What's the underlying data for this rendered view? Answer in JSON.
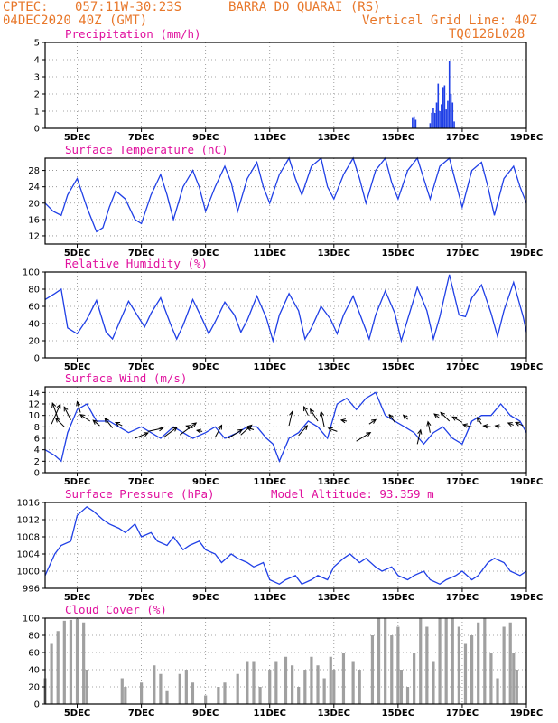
{
  "header": {
    "source": "CPTEC:",
    "coords": "057:11W-30:23S",
    "station": "BARRA DO QUARAI (RS)",
    "run": "04DEC2020 40Z (GMT)",
    "grid_note": "Vertical Grid Line: 40Z",
    "model": "TQ0126L028"
  },
  "colors": {
    "header": "#e8772a",
    "title": "#e0119e",
    "series": "#1f3fe6",
    "cloud": "#a0a0a0"
  },
  "x_tick_labels": [
    "5DEC",
    "7DEC",
    "9DEC",
    "11DEC",
    "13DEC",
    "15DEC",
    "17DEC",
    "19DEC"
  ],
  "chart_data": [
    {
      "id": "precip",
      "type": "bar",
      "title": "Precipitation (mm/h)",
      "ylim": [
        0,
        5
      ],
      "yticks": [
        0,
        1,
        2,
        3,
        4,
        5
      ],
      "x_unit": "day_of_dec",
      "values": [
        {
          "x": 15.45,
          "y": 0.6
        },
        {
          "x": 15.5,
          "y": 0.7
        },
        {
          "x": 15.55,
          "y": 0.5
        },
        {
          "x": 16.0,
          "y": 0.3
        },
        {
          "x": 16.05,
          "y": 0.9
        },
        {
          "x": 16.1,
          "y": 1.2
        },
        {
          "x": 16.15,
          "y": 0.9
        },
        {
          "x": 16.2,
          "y": 1.5
        },
        {
          "x": 16.25,
          "y": 2.6
        },
        {
          "x": 16.3,
          "y": 1.0
        },
        {
          "x": 16.35,
          "y": 1.4
        },
        {
          "x": 16.4,
          "y": 2.4
        },
        {
          "x": 16.45,
          "y": 2.5
        },
        {
          "x": 16.5,
          "y": 1.1
        },
        {
          "x": 16.55,
          "y": 1.6
        },
        {
          "x": 16.6,
          "y": 3.9
        },
        {
          "x": 16.65,
          "y": 2.0
        },
        {
          "x": 16.7,
          "y": 1.5
        },
        {
          "x": 16.75,
          "y": 0.4
        }
      ]
    },
    {
      "id": "temp",
      "type": "line",
      "title": "Surface Temperature (nC)",
      "ylim": [
        10,
        31
      ],
      "yticks": [
        12,
        16,
        20,
        24,
        28
      ],
      "x": [
        4.0,
        4.25,
        4.5,
        4.7,
        5.0,
        5.3,
        5.6,
        5.8,
        6.0,
        6.2,
        6.5,
        6.8,
        7.0,
        7.3,
        7.6,
        7.8,
        8.0,
        8.3,
        8.6,
        8.8,
        9.0,
        9.3,
        9.6,
        9.8,
        10.0,
        10.3,
        10.6,
        10.8,
        11.0,
        11.3,
        11.6,
        11.8,
        12.0,
        12.3,
        12.6,
        12.8,
        13.0,
        13.3,
        13.6,
        13.8,
        14.0,
        14.3,
        14.6,
        14.8,
        15.0,
        15.3,
        15.6,
        15.8,
        16.0,
        16.3,
        16.6,
        16.8,
        17.0,
        17.3,
        17.6,
        17.8,
        18.0,
        18.3,
        18.6,
        18.8,
        19.0
      ],
      "y": [
        20,
        18,
        17,
        22,
        26,
        19,
        13,
        14,
        19,
        23,
        21,
        16,
        15,
        22,
        27,
        22,
        16,
        24,
        28,
        24,
        18,
        24,
        29,
        25,
        18,
        26,
        30,
        24,
        20,
        27,
        31,
        26,
        22,
        29,
        31,
        24,
        21,
        27,
        31,
        26,
        20,
        28,
        31,
        25,
        21,
        28,
        31,
        26,
        21,
        29,
        31,
        25,
        19,
        28,
        30,
        24,
        17,
        26,
        29,
        24,
        20
      ]
    },
    {
      "id": "rh",
      "type": "line",
      "title": "Relative Humidity (%)",
      "ylim": [
        0,
        100
      ],
      "yticks": [
        0,
        20,
        40,
        60,
        80,
        100
      ],
      "x": [
        4.0,
        4.3,
        4.5,
        4.7,
        5.0,
        5.3,
        5.6,
        5.9,
        6.1,
        6.3,
        6.6,
        6.9,
        7.1,
        7.3,
        7.6,
        7.9,
        8.1,
        8.3,
        8.6,
        8.9,
        9.1,
        9.3,
        9.6,
        9.9,
        10.1,
        10.3,
        10.6,
        10.9,
        11.1,
        11.3,
        11.6,
        11.9,
        12.1,
        12.3,
        12.6,
        12.9,
        13.1,
        13.3,
        13.6,
        13.9,
        14.1,
        14.3,
        14.6,
        14.9,
        15.1,
        15.3,
        15.6,
        15.9,
        16.1,
        16.3,
        16.6,
        16.9,
        17.1,
        17.3,
        17.6,
        17.9,
        18.1,
        18.3,
        18.6,
        18.9,
        19.0
      ],
      "y": [
        68,
        75,
        80,
        35,
        28,
        45,
        67,
        30,
        22,
        40,
        66,
        48,
        36,
        52,
        70,
        40,
        22,
        38,
        68,
        45,
        28,
        42,
        65,
        50,
        30,
        44,
        72,
        46,
        20,
        50,
        75,
        55,
        22,
        35,
        60,
        45,
        28,
        50,
        72,
        42,
        22,
        50,
        78,
        52,
        20,
        45,
        82,
        55,
        22,
        48,
        97,
        50,
        48,
        70,
        85,
        52,
        25,
        55,
        88,
        48,
        30
      ]
    },
    {
      "id": "wind",
      "type": "line",
      "title": "Surface Wind (m/s)",
      "ylim": [
        0,
        15
      ],
      "yticks": [
        0,
        2,
        4,
        6,
        8,
        10,
        12,
        14
      ],
      "x": [
        4.0,
        4.3,
        4.5,
        4.7,
        5.0,
        5.3,
        5.6,
        6.0,
        6.3,
        6.6,
        7.0,
        7.3,
        7.6,
        8.0,
        8.3,
        8.6,
        9.0,
        9.3,
        9.6,
        10.0,
        10.3,
        10.6,
        10.9,
        11.1,
        11.3,
        11.6,
        11.9,
        12.2,
        12.5,
        12.8,
        13.1,
        13.4,
        13.7,
        14.0,
        14.3,
        14.6,
        14.9,
        15.2,
        15.5,
        15.8,
        16.1,
        16.4,
        16.7,
        17.0,
        17.3,
        17.6,
        17.9,
        18.2,
        18.5,
        18.8,
        19.0
      ],
      "y": [
        4,
        3,
        2,
        7,
        11,
        12,
        9,
        9,
        8,
        7,
        8,
        7,
        6,
        8,
        7,
        6,
        7,
        8,
        6,
        7,
        8,
        8,
        6,
        5,
        2,
        6,
        7,
        9,
        8,
        6,
        12,
        13,
        11,
        13,
        14,
        10,
        9,
        8,
        7,
        5,
        7,
        8,
        6,
        5,
        9,
        10,
        10,
        12,
        10,
        9,
        7
      ],
      "arrows": [
        {
          "x": 4.2,
          "y": 8.5,
          "u": 0.8,
          "v": 1.8
        },
        {
          "x": 4.4,
          "y": 9.5,
          "u": -0.5,
          "v": 1.4
        },
        {
          "x": 4.6,
          "y": 8.0,
          "u": -0.8,
          "v": 0.8
        },
        {
          "x": 4.8,
          "y": 9.2,
          "u": -0.6,
          "v": 1.2
        },
        {
          "x": 5.1,
          "y": 10.5,
          "u": -0.3,
          "v": 1.0
        },
        {
          "x": 5.4,
          "y": 9.0,
          "u": -0.9,
          "v": 0.6
        },
        {
          "x": 5.7,
          "y": 8.2,
          "u": -0.6,
          "v": 0.5
        },
        {
          "x": 6.1,
          "y": 7.8,
          "u": -0.7,
          "v": 0.9
        },
        {
          "x": 6.4,
          "y": 8.2,
          "u": -0.6,
          "v": 0.3
        },
        {
          "x": 6.8,
          "y": 6.0,
          "u": 1.2,
          "v": 0.5
        },
        {
          "x": 7.2,
          "y": 7.2,
          "u": 1.4,
          "v": 0.3
        },
        {
          "x": 7.7,
          "y": 6.2,
          "u": 1.2,
          "v": 0.9
        },
        {
          "x": 8.2,
          "y": 6.6,
          "u": 1.5,
          "v": 1.1
        },
        {
          "x": 8.6,
          "y": 7.8,
          "u": -0.6,
          "v": 0.2
        },
        {
          "x": 8.9,
          "y": 7.2,
          "u": -0.5,
          "v": 0.1
        },
        {
          "x": 9.3,
          "y": 6.2,
          "u": 0.6,
          "v": 1.1
        },
        {
          "x": 9.7,
          "y": 6.0,
          "u": 1.3,
          "v": 0.8
        },
        {
          "x": 10.1,
          "y": 6.6,
          "u": 1.0,
          "v": 0.9
        },
        {
          "x": 10.5,
          "y": 7.5,
          "u": -0.6,
          "v": 0.2
        },
        {
          "x": 11.6,
          "y": 8.2,
          "u": 0.3,
          "v": 1.3
        },
        {
          "x": 11.9,
          "y": 6.5,
          "u": 0.8,
          "v": 0.9
        },
        {
          "x": 12.2,
          "y": 10.0,
          "u": -0.4,
          "v": 0.8
        },
        {
          "x": 12.5,
          "y": 9.0,
          "u": -0.7,
          "v": 1.1
        },
        {
          "x": 12.7,
          "y": 8.0,
          "u": -0.3,
          "v": 1.4
        },
        {
          "x": 13.1,
          "y": 7.2,
          "u": -0.8,
          "v": 0.3
        },
        {
          "x": 13.4,
          "y": 9.0,
          "u": -0.5,
          "v": 0.1
        },
        {
          "x": 13.7,
          "y": 5.5,
          "u": 1.3,
          "v": 0.8
        },
        {
          "x": 14.1,
          "y": 8.5,
          "u": 0.6,
          "v": 0.4
        },
        {
          "x": 14.9,
          "y": 8.8,
          "u": -0.5,
          "v": 0.7
        },
        {
          "x": 15.3,
          "y": 9.3,
          "u": -0.4,
          "v": 0.4
        },
        {
          "x": 15.6,
          "y": 5.0,
          "u": 0.3,
          "v": 1.3
        },
        {
          "x": 16.0,
          "y": 7.0,
          "u": -0.2,
          "v": 1.0
        },
        {
          "x": 16.3,
          "y": 9.5,
          "u": -0.5,
          "v": 0.4
        },
        {
          "x": 16.6,
          "y": 9.0,
          "u": -0.8,
          "v": 0.8
        },
        {
          "x": 17.0,
          "y": 8.8,
          "u": -0.9,
          "v": 0.5
        },
        {
          "x": 17.3,
          "y": 8.0,
          "u": -0.8,
          "v": 0.2
        },
        {
          "x": 17.6,
          "y": 8.5,
          "u": -0.4,
          "v": 0.6
        },
        {
          "x": 17.9,
          "y": 8.0,
          "u": -0.7,
          "v": 0.1
        },
        {
          "x": 18.2,
          "y": 8.0,
          "u": -0.5,
          "v": 0.1
        },
        {
          "x": 18.6,
          "y": 8.3,
          "u": -0.5,
          "v": 0.2
        },
        {
          "x": 18.9,
          "y": 8.2,
          "u": -0.7,
          "v": 0.3
        }
      ]
    },
    {
      "id": "pressure",
      "type": "line",
      "title": "Surface Pressure (hPa)",
      "annotation": "Model Altitude: 93.359 m",
      "ylim": [
        996,
        1016
      ],
      "yticks": [
        996,
        1000,
        1004,
        1008,
        1012,
        1016
      ],
      "x": [
        4.0,
        4.3,
        4.5,
        4.8,
        5.0,
        5.3,
        5.5,
        5.8,
        6.0,
        6.3,
        6.5,
        6.8,
        7.0,
        7.3,
        7.5,
        7.8,
        8.0,
        8.3,
        8.5,
        8.8,
        9.0,
        9.3,
        9.5,
        9.8,
        10.0,
        10.3,
        10.5,
        10.8,
        11.0,
        11.3,
        11.5,
        11.8,
        12.0,
        12.3,
        12.5,
        12.8,
        13.0,
        13.3,
        13.5,
        13.8,
        14.0,
        14.3,
        14.5,
        14.8,
        15.0,
        15.3,
        15.5,
        15.8,
        16.0,
        16.3,
        16.5,
        16.8,
        17.0,
        17.3,
        17.5,
        17.8,
        18.0,
        18.3,
        18.5,
        18.8,
        19.0
      ],
      "y": [
        999,
        1004,
        1006,
        1007,
        1013,
        1015,
        1014,
        1012,
        1011,
        1010,
        1009,
        1011,
        1008,
        1009,
        1007,
        1006,
        1008,
        1005,
        1006,
        1007,
        1005,
        1004,
        1002,
        1004,
        1003,
        1002,
        1001,
        1002,
        998,
        997,
        998,
        999,
        997,
        998,
        999,
        998,
        1001,
        1003,
        1004,
        1002,
        1003,
        1001,
        1000,
        1001,
        999,
        998,
        999,
        1000,
        998,
        997,
        998,
        999,
        1000,
        998,
        999,
        1002,
        1003,
        1002,
        1000,
        999,
        1000
      ]
    },
    {
      "id": "cloud",
      "type": "bar",
      "title": "Cloud Cover (%)",
      "ylim": [
        0,
        100
      ],
      "yticks": [
        0,
        20,
        40,
        60,
        80,
        100
      ],
      "x_unit": "day_of_dec",
      "values": [
        {
          "x": 4.0,
          "y": 30
        },
        {
          "x": 4.2,
          "y": 70
        },
        {
          "x": 4.4,
          "y": 85
        },
        {
          "x": 4.6,
          "y": 97
        },
        {
          "x": 4.8,
          "y": 98
        },
        {
          "x": 5.0,
          "y": 99
        },
        {
          "x": 5.2,
          "y": 95
        },
        {
          "x": 5.3,
          "y": 40
        },
        {
          "x": 6.4,
          "y": 30
        },
        {
          "x": 6.5,
          "y": 20
        },
        {
          "x": 7.0,
          "y": 25
        },
        {
          "x": 7.4,
          "y": 45
        },
        {
          "x": 7.6,
          "y": 35
        },
        {
          "x": 7.8,
          "y": 15
        },
        {
          "x": 8.2,
          "y": 35
        },
        {
          "x": 8.4,
          "y": 40
        },
        {
          "x": 8.6,
          "y": 25
        },
        {
          "x": 9.0,
          "y": 10
        },
        {
          "x": 9.4,
          "y": 20
        },
        {
          "x": 9.6,
          "y": 25
        },
        {
          "x": 10.0,
          "y": 35
        },
        {
          "x": 10.3,
          "y": 50
        },
        {
          "x": 10.5,
          "y": 50
        },
        {
          "x": 10.7,
          "y": 20
        },
        {
          "x": 11.0,
          "y": 40
        },
        {
          "x": 11.2,
          "y": 50
        },
        {
          "x": 11.5,
          "y": 55
        },
        {
          "x": 11.7,
          "y": 45
        },
        {
          "x": 11.9,
          "y": 20
        },
        {
          "x": 12.1,
          "y": 40
        },
        {
          "x": 12.3,
          "y": 55
        },
        {
          "x": 12.5,
          "y": 45
        },
        {
          "x": 12.7,
          "y": 30
        },
        {
          "x": 12.9,
          "y": 55
        },
        {
          "x": 13.0,
          "y": 40
        },
        {
          "x": 13.3,
          "y": 60
        },
        {
          "x": 13.6,
          "y": 50
        },
        {
          "x": 13.8,
          "y": 40
        },
        {
          "x": 14.2,
          "y": 80
        },
        {
          "x": 14.4,
          "y": 100
        },
        {
          "x": 14.6,
          "y": 100
        },
        {
          "x": 14.8,
          "y": 80
        },
        {
          "x": 15.0,
          "y": 90
        },
        {
          "x": 15.1,
          "y": 40
        },
        {
          "x": 15.3,
          "y": 20
        },
        {
          "x": 15.5,
          "y": 60
        },
        {
          "x": 15.7,
          "y": 100
        },
        {
          "x": 15.9,
          "y": 90
        },
        {
          "x": 16.1,
          "y": 50
        },
        {
          "x": 16.3,
          "y": 100
        },
        {
          "x": 16.5,
          "y": 100
        },
        {
          "x": 16.7,
          "y": 100
        },
        {
          "x": 16.9,
          "y": 90
        },
        {
          "x": 17.1,
          "y": 70
        },
        {
          "x": 17.3,
          "y": 80
        },
        {
          "x": 17.5,
          "y": 95
        },
        {
          "x": 17.7,
          "y": 100
        },
        {
          "x": 17.9,
          "y": 60
        },
        {
          "x": 18.1,
          "y": 30
        },
        {
          "x": 18.3,
          "y": 90
        },
        {
          "x": 18.5,
          "y": 95
        },
        {
          "x": 18.6,
          "y": 60
        },
        {
          "x": 18.7,
          "y": 40
        }
      ]
    }
  ]
}
